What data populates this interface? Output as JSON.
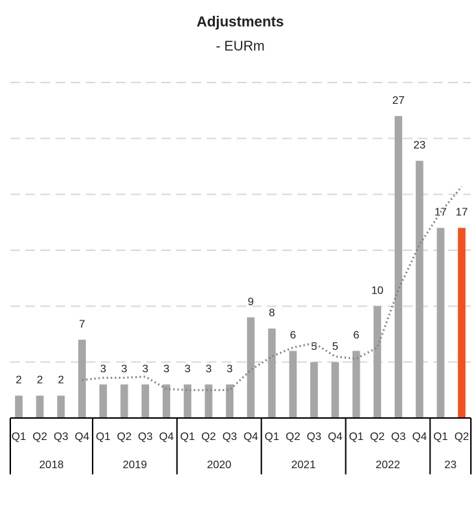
{
  "chart_data": {
    "type": "bar",
    "title": "Adjustments",
    "subtitle": "- EURm",
    "groups": [
      {
        "label": "2018",
        "categories": [
          "Q1",
          "Q2",
          "Q3",
          "Q4"
        ]
      },
      {
        "label": "2019",
        "categories": [
          "Q1",
          "Q2",
          "Q3",
          "Q4"
        ]
      },
      {
        "label": "2020",
        "categories": [
          "Q1",
          "Q2",
          "Q3",
          "Q4"
        ]
      },
      {
        "label": "2021",
        "categories": [
          "Q1",
          "Q2",
          "Q3",
          "Q4"
        ]
      },
      {
        "label": "2022",
        "categories": [
          "Q1",
          "Q2",
          "Q3",
          "Q4"
        ]
      },
      {
        "label": "23",
        "categories": [
          "Q1",
          "Q2"
        ]
      }
    ],
    "values": [
      2,
      2,
      2,
      7,
      3,
      3,
      3,
      3,
      3,
      3,
      3,
      9,
      8,
      6,
      5,
      5,
      6,
      10,
      27,
      23,
      17,
      17
    ],
    "colors": [
      "#a6a6a6",
      "#a6a6a6",
      "#a6a6a6",
      "#a6a6a6",
      "#a6a6a6",
      "#a6a6a6",
      "#a6a6a6",
      "#a6a6a6",
      "#a6a6a6",
      "#a6a6a6",
      "#a6a6a6",
      "#a6a6a6",
      "#a6a6a6",
      "#a6a6a6",
      "#a6a6a6",
      "#a6a6a6",
      "#a6a6a6",
      "#a6a6a6",
      "#a6a6a6",
      "#a6a6a6",
      "#a6a6a6",
      "#f4511e"
    ],
    "trend": {
      "color": "#808080",
      "values": [
        null,
        null,
        null,
        3.4,
        3.6,
        3.6,
        3.7,
        2.6,
        2.5,
        2.5,
        2.5,
        4.3,
        5.5,
        6.3,
        6.7,
        5.5,
        5.3,
        6.3,
        11.5,
        15.5,
        18.4,
        20.7
      ]
    },
    "ylim": [
      0,
      30
    ],
    "yticks": [
      0,
      5,
      10,
      15,
      20,
      25,
      30
    ],
    "grid": true
  }
}
